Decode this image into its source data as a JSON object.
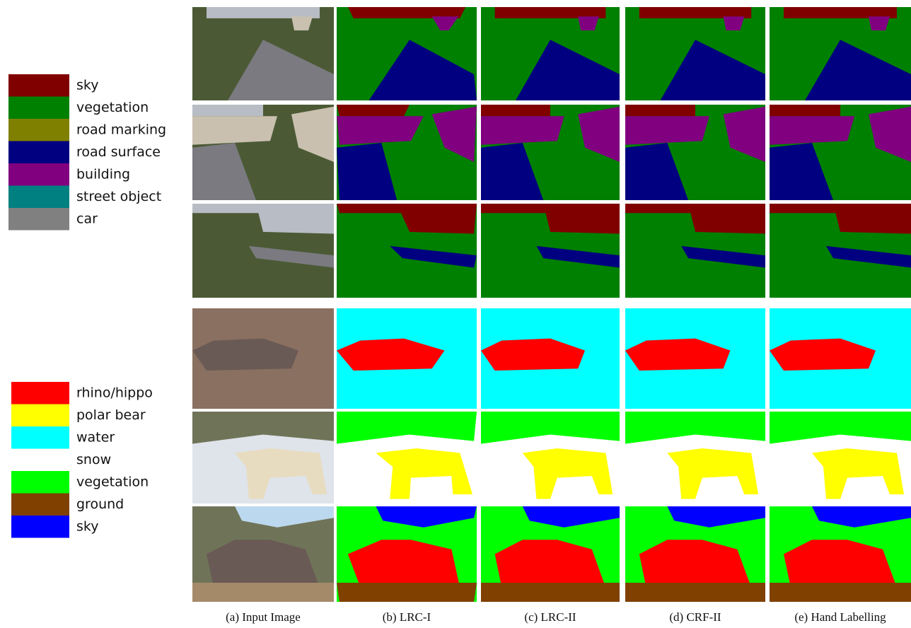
{
  "legends": [
    {
      "items": [
        {
          "name": "sky",
          "color": "#800000"
        },
        {
          "name": "vegetation",
          "color": "#008000"
        },
        {
          "name": "road marking",
          "color": "#808000"
        },
        {
          "name": "road surface",
          "color": "#000080"
        },
        {
          "name": "building",
          "color": "#800080"
        },
        {
          "name": "street object",
          "color": "#008080"
        },
        {
          "name": "car",
          "color": "#808080"
        }
      ]
    },
    {
      "items": [
        {
          "name": "rhino/hippo",
          "color": "#ff0000"
        },
        {
          "name": "polar bear",
          "color": "#ffff00"
        },
        {
          "name": "water",
          "color": "#00ffff"
        },
        {
          "name": "snow",
          "color": "#ffffff"
        },
        {
          "name": "vegetation",
          "color": "#00ff00"
        },
        {
          "name": "ground",
          "color": "#804000"
        },
        {
          "name": "sky",
          "color": "#0000ff"
        }
      ]
    }
  ],
  "captions": [
    "(a) Input Image",
    "(b) LRC-I",
    "(c) LRC-II",
    "(d) CRF-II",
    "(e) Hand Labelling"
  ]
}
